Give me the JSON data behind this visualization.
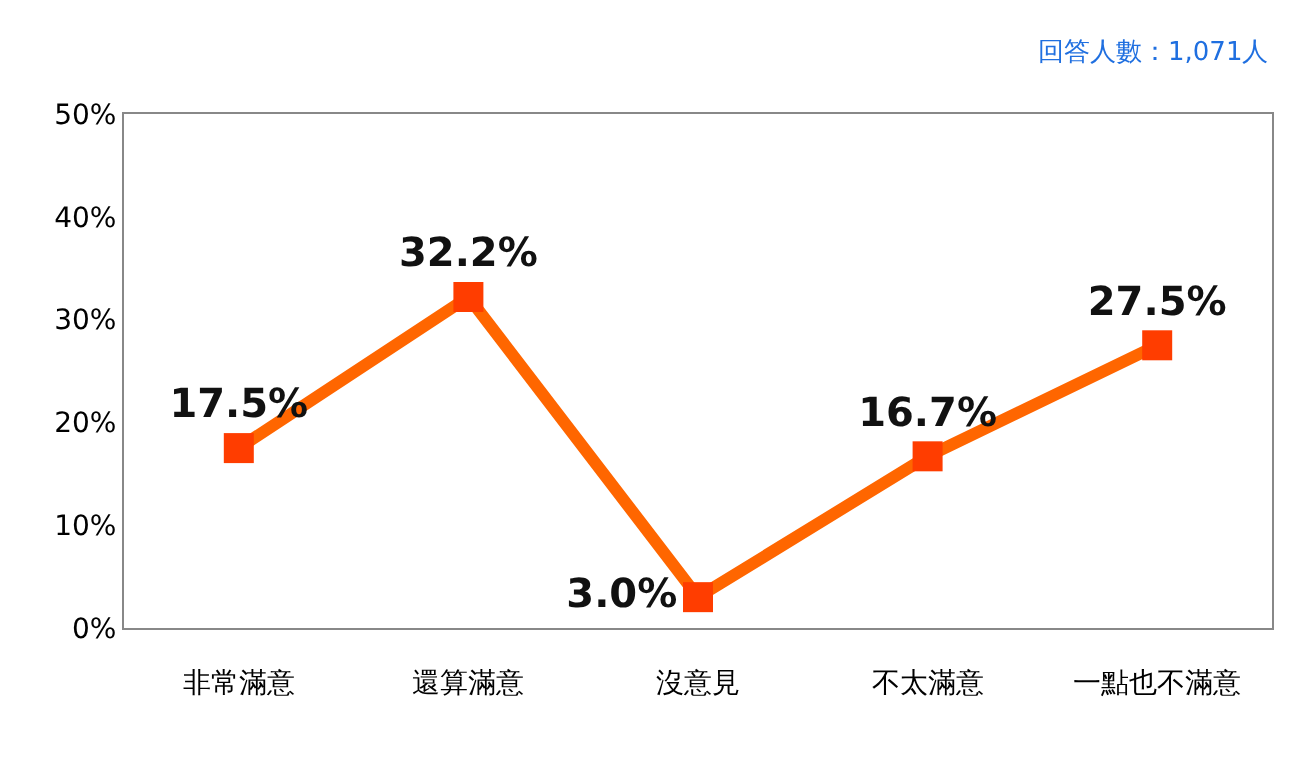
{
  "chart_data": {
    "type": "line",
    "categories": [
      "非常滿意",
      "還算滿意",
      "沒意見",
      "不太滿意",
      "一點也不滿意"
    ],
    "series": [
      {
        "color": "#ff6600",
        "values": [
          17.5,
          32.2,
          3.0,
          16.7,
          27.5
        ],
        "value_labels": [
          "17.5%",
          "32.2%",
          "3.0%",
          "16.7%",
          "27.5%"
        ]
      }
    ],
    "ylim": [
      0,
      50
    ],
    "yticks": [
      {
        "value": 0,
        "label": "0%"
      },
      {
        "value": 10,
        "label": "10%"
      },
      {
        "value": 20,
        "label": "20%"
      },
      {
        "value": 30,
        "label": "30%"
      },
      {
        "value": 40,
        "label": "40%"
      },
      {
        "value": 50,
        "label": "50%"
      }
    ],
    "annotations": [
      "回答人數：1,071人"
    ],
    "marker": "square",
    "line_style": "solid"
  }
}
